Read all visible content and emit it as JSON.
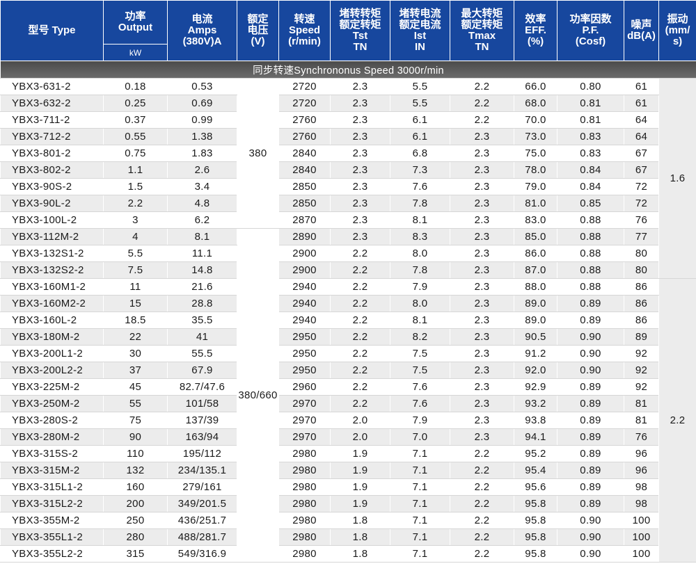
{
  "header": {
    "model": "型号 Type",
    "power_zh": "功率",
    "power_en": "Output",
    "power_unit": "kW",
    "current_zh": "电流",
    "current_en": "Amps",
    "current_unit": "(380V)A",
    "voltage_zh1": "额定",
    "voltage_zh2": "电压",
    "voltage_unit": "(V)",
    "speed_zh": "转速",
    "speed_en": "Speed",
    "speed_unit": "(r/min)",
    "lrt_zh1": "堵转转矩",
    "lrt_zh2": "额定转矩",
    "lrt_en1": "Tst",
    "lrt_en2": "TN",
    "lrc_zh1": "堵转电流",
    "lrc_zh2": "额定电流",
    "lrc_en1": "Ist",
    "lrc_en2": "IN",
    "bdt_zh1": "最大转矩",
    "bdt_zh2": "额定转矩",
    "bdt_en1": "Tmax",
    "bdt_en2": "TN",
    "eff_zh": "效率",
    "eff_en": "EFF.",
    "eff_unit": "(%)",
    "pf_zh": "功率因数",
    "pf_en": "P.F.",
    "pf_unit": "(Cosf)",
    "noise_zh": "噪声",
    "noise_unit": "dB(A)",
    "vib_zh": "振动",
    "vib_unit1": "(mm/",
    "vib_unit2": "s)"
  },
  "banner": "同步转速Synchrononus Speed 3000r/min",
  "voltage_groups": [
    "380",
    "380/660"
  ],
  "vibration_groups": [
    "1.6",
    "2.2"
  ],
  "rows": [
    [
      "YBX3-631-2",
      "0.18",
      "0.53",
      "2720",
      "2.3",
      "5.5",
      "2.2",
      "66.0",
      "0.80",
      "61"
    ],
    [
      "YBX3-632-2",
      "0.25",
      "0.69",
      "2720",
      "2.3",
      "5.5",
      "2.2",
      "68.0",
      "0.81",
      "61"
    ],
    [
      "YBX3-711-2",
      "0.37",
      "0.99",
      "2760",
      "2.3",
      "6.1",
      "2.2",
      "70.0",
      "0.81",
      "64"
    ],
    [
      "YBX3-712-2",
      "0.55",
      "1.38",
      "2760",
      "2.3",
      "6.1",
      "2.3",
      "73.0",
      "0.83",
      "64"
    ],
    [
      "YBX3-801-2",
      "0.75",
      "1.83",
      "2840",
      "2.3",
      "6.8",
      "2.3",
      "75.0",
      "0.83",
      "67"
    ],
    [
      "YBX3-802-2",
      "1.1",
      "2.6",
      "2840",
      "2.3",
      "7.3",
      "2.3",
      "78.0",
      "0.84",
      "67"
    ],
    [
      "YBX3-90S-2",
      "1.5",
      "3.4",
      "2850",
      "2.3",
      "7.6",
      "2.3",
      "79.0",
      "0.84",
      "72"
    ],
    [
      "YBX3-90L-2",
      "2.2",
      "4.8",
      "2850",
      "2.3",
      "7.8",
      "2.3",
      "81.0",
      "0.85",
      "72"
    ],
    [
      "YBX3-100L-2",
      "3",
      "6.2",
      "2870",
      "2.3",
      "8.1",
      "2.3",
      "83.0",
      "0.88",
      "76"
    ],
    [
      "YBX3-112M-2",
      "4",
      "8.1",
      "2890",
      "2.3",
      "8.3",
      "2.3",
      "85.0",
      "0.88",
      "77"
    ],
    [
      "YBX3-132S1-2",
      "5.5",
      "11.1",
      "2900",
      "2.2",
      "8.0",
      "2.3",
      "86.0",
      "0.88",
      "80"
    ],
    [
      "YBX3-132S2-2",
      "7.5",
      "14.8",
      "2900",
      "2.2",
      "7.8",
      "2.3",
      "87.0",
      "0.88",
      "80"
    ],
    [
      "YBX3-160M1-2",
      "11",
      "21.6",
      "2940",
      "2.2",
      "7.9",
      "2.3",
      "88.0",
      "0.88",
      "86"
    ],
    [
      "YBX3-160M2-2",
      "15",
      "28.8",
      "2940",
      "2.2",
      "8.0",
      "2.3",
      "89.0",
      "0.89",
      "86"
    ],
    [
      "YBX3-160L-2",
      "18.5",
      "35.5",
      "2940",
      "2.2",
      "8.1",
      "2.3",
      "89.0",
      "0.89",
      "86"
    ],
    [
      "YBX3-180M-2",
      "22",
      "41",
      "2950",
      "2.2",
      "8.2",
      "2.3",
      "90.5",
      "0.90",
      "89"
    ],
    [
      "YBX3-200L1-2",
      "30",
      "55.5",
      "2950",
      "2.2",
      "7.5",
      "2.3",
      "91.2",
      "0.90",
      "92"
    ],
    [
      "YBX3-200L2-2",
      "37",
      "67.9",
      "2950",
      "2.2",
      "7.5",
      "2.3",
      "92.0",
      "0.90",
      "92"
    ],
    [
      "YBX3-225M-2",
      "45",
      "82.7/47.6",
      "2960",
      "2.2",
      "7.6",
      "2.3",
      "92.9",
      "0.89",
      "92"
    ],
    [
      "YBX3-250M-2",
      "55",
      "101/58",
      "2970",
      "2.2",
      "7.6",
      "2.3",
      "93.2",
      "0.89",
      "81"
    ],
    [
      "YBX3-280S-2",
      "75",
      "137/39",
      "2970",
      "2.0",
      "7.9",
      "2.3",
      "93.8",
      "0.89",
      "81"
    ],
    [
      "YBX3-280M-2",
      "90",
      "163/94",
      "2970",
      "2.0",
      "7.0",
      "2.3",
      "94.1",
      "0.89",
      "76"
    ],
    [
      "YBX3-315S-2",
      "110",
      "195/112",
      "2980",
      "1.9",
      "7.1",
      "2.2",
      "95.2",
      "0.89",
      "96"
    ],
    [
      "YBX3-315M-2",
      "132",
      "234/135.1",
      "2980",
      "1.9",
      "7.1",
      "2.2",
      "95.4",
      "0.89",
      "96"
    ],
    [
      "YBX3-315L1-2",
      "160",
      "279/161",
      "2980",
      "1.9",
      "7.1",
      "2.2",
      "95.6",
      "0.89",
      "98"
    ],
    [
      "YBX3-315L2-2",
      "200",
      "349/201.5",
      "2980",
      "1.9",
      "7.1",
      "2.2",
      "95.8",
      "0.89",
      "98"
    ],
    [
      "YBX3-355M-2",
      "250",
      "436/251.7",
      "2980",
      "1.8",
      "7.1",
      "2.2",
      "95.8",
      "0.90",
      "100"
    ],
    [
      "YBX3-355L1-2",
      "280",
      "488/281.7",
      "2980",
      "1.8",
      "7.1",
      "2.2",
      "95.8",
      "0.90",
      "100"
    ],
    [
      "YBX3-355L2-2",
      "315",
      "549/316.9",
      "2980",
      "1.8",
      "7.1",
      "2.2",
      "95.8",
      "0.90",
      "100"
    ]
  ]
}
